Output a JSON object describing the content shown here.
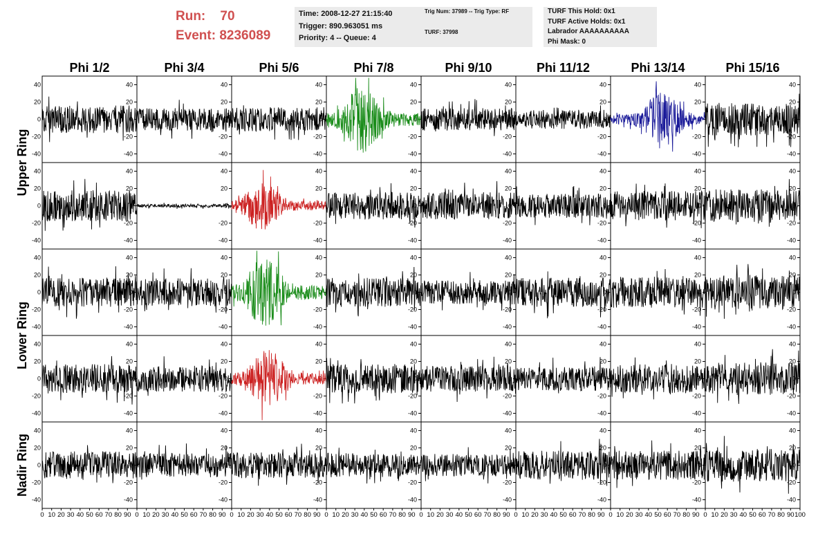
{
  "header": {
    "run_label": "Run:",
    "run_value": "70",
    "event_label": "Event:",
    "event_value": "8236089"
  },
  "info_time": {
    "time": "Time: 2008-12-27 21:15:40",
    "trigger": "Trigger: 890.963051 ms",
    "priority": "Priority: 4 -- Queue: 4"
  },
  "info_trig": {
    "trig": "Trig Num: 37989 -- Trig Type: RF",
    "turf": "TURF: 37998"
  },
  "info_turf": {
    "this_hold": "TURF This Hold: 0x1",
    "active_holds": "TURF Active Holds: 0x1",
    "labrador": "Labrador AAAAAAAAAA",
    "phi_mask": "Phi Mask: 0"
  },
  "colors": {
    "header_red": "#d05050",
    "trace_default": "#000000",
    "trace_green": "#1a8c1a",
    "trace_red": "#cc2222",
    "trace_blue": "#1a1a99",
    "infobox_bg": "#ebebeb"
  },
  "chart_data": {
    "type": "line",
    "columns": [
      "Phi 1/2",
      "Phi 3/4",
      "Phi 5/6",
      "Phi 7/8",
      "Phi 9/10",
      "Phi 11/12",
      "Phi 13/14",
      "Phi 15/16"
    ],
    "rows": [
      {
        "label": "",
        "group": "Upper Ring"
      },
      {
        "label": "",
        "group": "Upper Ring"
      },
      {
        "label": "",
        "group": "Lower Ring"
      },
      {
        "label": "",
        "group": "Lower Ring"
      },
      {
        "label": "",
        "group": "Nadir Ring"
      }
    ],
    "row_group_labels": [
      "Upper Ring",
      "Lower Ring",
      "Nadir Ring"
    ],
    "xlim": [
      0,
      100
    ],
    "ylim": [
      -50,
      50
    ],
    "y_ticks": [
      "40",
      "20",
      "0",
      "-20",
      "-40"
    ],
    "x_ticks": [
      "0",
      "10",
      "20",
      "30",
      "40",
      "50",
      "60",
      "70",
      "80",
      "90",
      "100"
    ],
    "grid": false,
    "samples_per_trace": 256,
    "traces": [
      [
        {
          "amp": 16,
          "color": "default"
        },
        {
          "amp": 13,
          "color": "default"
        },
        {
          "amp": 14,
          "color": "default"
        },
        {
          "amp": 30,
          "color": "green",
          "pulse": 38
        },
        {
          "amp": 13,
          "color": "default"
        },
        {
          "amp": 11,
          "color": "default"
        },
        {
          "amp": 24,
          "color": "blue",
          "pulse": 55
        },
        {
          "amp": 19,
          "color": "default"
        }
      ],
      [
        {
          "amp": 18,
          "color": "default"
        },
        {
          "amp": 2,
          "color": "default"
        },
        {
          "amp": 22,
          "color": "red",
          "pulse": 33
        },
        {
          "amp": 16,
          "color": "default"
        },
        {
          "amp": 16,
          "color": "default"
        },
        {
          "amp": 14,
          "color": "default"
        },
        {
          "amp": 17,
          "color": "default"
        },
        {
          "amp": 19,
          "color": "default"
        }
      ],
      [
        {
          "amp": 17,
          "color": "default"
        },
        {
          "amp": 16,
          "color": "default"
        },
        {
          "amp": 32,
          "color": "green",
          "pulse": 35
        },
        {
          "amp": 17,
          "color": "default"
        },
        {
          "amp": 14,
          "color": "default"
        },
        {
          "amp": 17,
          "color": "default"
        },
        {
          "amp": 18,
          "color": "default"
        },
        {
          "amp": 20,
          "color": "default"
        }
      ],
      [
        {
          "amp": 17,
          "color": "default"
        },
        {
          "amp": 15,
          "color": "default"
        },
        {
          "amp": 26,
          "color": "red",
          "pulse": 38
        },
        {
          "amp": 17,
          "color": "default"
        },
        {
          "amp": 15,
          "color": "default"
        },
        {
          "amp": 14,
          "color": "default"
        },
        {
          "amp": 17,
          "color": "default"
        },
        {
          "amp": 19,
          "color": "default"
        }
      ],
      [
        {
          "amp": 16,
          "color": "default"
        },
        {
          "amp": 14,
          "color": "default"
        },
        {
          "amp": 15,
          "color": "default"
        },
        {
          "amp": 14,
          "color": "default"
        },
        {
          "amp": 13,
          "color": "default"
        },
        {
          "amp": 17,
          "color": "default"
        },
        {
          "amp": 17,
          "color": "default"
        },
        {
          "amp": 19,
          "color": "default"
        }
      ]
    ]
  }
}
